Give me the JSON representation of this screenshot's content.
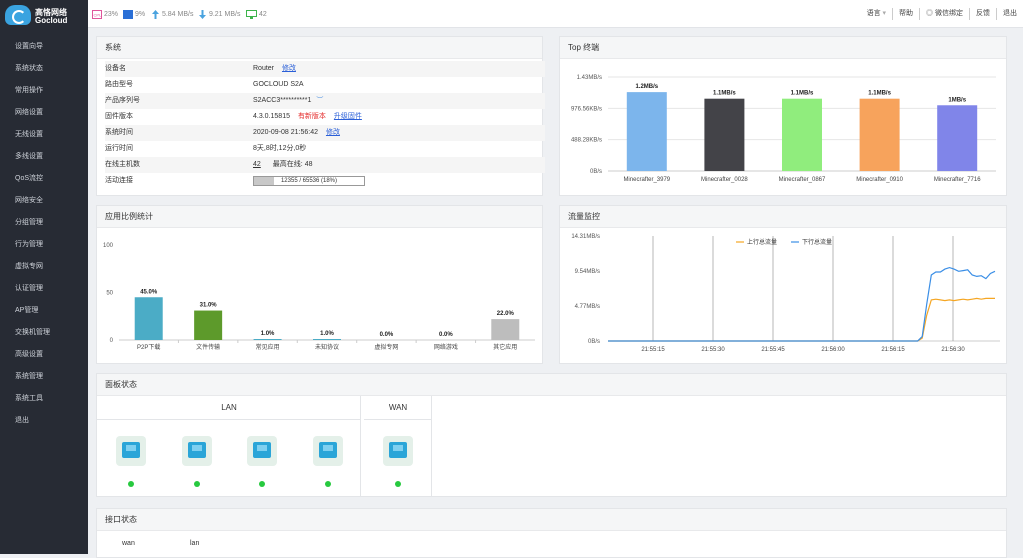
{
  "brand": {
    "cn": "高恪网络",
    "en": "Gocloud"
  },
  "sidebar": {
    "items": [
      "设置向导",
      "系统状态",
      "常用操作",
      "网络设置",
      "无线设置",
      "多线设置",
      "QoS流控",
      "网络安全",
      "分组管理",
      "行为管理",
      "虚拟专网",
      "认证管理",
      "AP管理",
      "交换机管理",
      "高级设置",
      "系统管理",
      "系统工具",
      "退出"
    ]
  },
  "topbar": {
    "cpu": "23%",
    "mem": "9%",
    "up": "5.84 MB/s",
    "down": "9.21 MB/s",
    "hosts": "42",
    "menu": [
      "语言",
      "帮助",
      "微信绑定",
      "反馈",
      "退出"
    ]
  },
  "system": {
    "title": "系统",
    "rows": [
      {
        "k": "设备名",
        "v": "Router",
        "link": "修改"
      },
      {
        "k": "路由型号",
        "v": "GOCLOUD S2A"
      },
      {
        "k": "产品序列号",
        "v": "S2ACC3**********1"
      },
      {
        "k": "固件版本",
        "v": "4.3.0.15815",
        "red": "有新版本",
        "link": "升级固件"
      },
      {
        "k": "系统时间",
        "v": "2020-09-08 21:56:42",
        "link": "修改"
      },
      {
        "k": "运行时间",
        "v": "8天,8时,12分,0秒"
      },
      {
        "k": "在线主机数",
        "v": "42",
        "extra_label": "最高在线:",
        "extra": "48"
      },
      {
        "k": "活动连接",
        "v": "12355 / 65536 (18%)",
        "progress": 0.18
      }
    ]
  },
  "top_terminals": {
    "title": "Top 终端",
    "chart_data": {
      "type": "bar",
      "categories": [
        "Minecrafter_3979",
        "Minecrafter_0028",
        "Minecrafter_0867",
        "Minecrafter_0910",
        "Minecrafter_7716"
      ],
      "values": [
        1.2,
        1.1,
        1.1,
        1.1,
        1.0
      ],
      "value_labels": [
        "1.2MB/s",
        "1.1MB/s",
        "1.1MB/s",
        "1.1MB/s",
        "1MB/s"
      ],
      "colors": [
        "#7cb5ec",
        "#434348",
        "#90ed7d",
        "#f7a35c",
        "#8085e9"
      ],
      "y_ticks": [
        "1.43MB/s",
        "976.56KB/s",
        "488.28KB/s",
        "0B/s"
      ],
      "ylim": [
        0,
        1.43
      ]
    }
  },
  "app_stats": {
    "title": "应用比例统计",
    "chart_data": {
      "type": "bar",
      "categories": [
        "P2P下载",
        "文件传输",
        "常见应用",
        "未知协议",
        "虚拟专网",
        "网络游戏",
        "其它应用"
      ],
      "values": [
        45.0,
        31.0,
        1.0,
        1.0,
        0.0,
        0.0,
        22.0
      ],
      "value_labels": [
        "45.0%",
        "31.0%",
        "1.0%",
        "1.0%",
        "0.0%",
        "0.0%",
        "22.0%"
      ],
      "colors": [
        "#4bacc6",
        "#5d9a2b",
        "#4bacc6",
        "#4bacc6",
        "#4bacc6",
        "#4bacc6",
        "#bdbdbd"
      ],
      "y_ticks": [
        "100",
        "50",
        "0"
      ],
      "ylim": [
        0,
        100
      ]
    }
  },
  "traffic": {
    "title": "流量监控",
    "chart_data": {
      "type": "line",
      "x_ticks": [
        "21:55:15",
        "21:55:30",
        "21:55:45",
        "21:56:00",
        "21:56:15",
        "21:56:30"
      ],
      "y_ticks": [
        "14.31MB/s",
        "9.54MB/s",
        "4.77MB/s",
        "0B/s"
      ],
      "ylim": [
        0,
        14.31
      ],
      "series": [
        {
          "name": "上行总流量",
          "color": "#f5a623",
          "values": [
            0,
            0,
            0,
            0,
            0,
            0,
            0,
            0,
            0,
            0,
            0,
            0,
            0,
            0,
            0,
            0,
            0,
            0,
            0,
            0,
            0,
            0,
            0,
            0,
            0,
            0,
            0,
            0,
            0,
            0,
            0,
            0,
            0,
            0,
            0,
            0,
            0,
            0,
            0,
            0,
            0,
            0,
            0,
            0,
            0,
            0,
            0,
            0,
            0,
            0,
            0,
            0,
            0,
            0,
            0,
            0,
            0,
            0,
            0,
            0,
            0,
            0,
            0,
            0,
            0,
            0,
            0,
            0,
            0,
            0.4,
            3.5,
            5.6,
            5.7,
            5.6,
            5.5,
            5.6,
            5.5,
            5.6,
            5.7,
            5.6,
            5.7,
            5.8,
            5.7,
            5.8,
            5.8,
            5.8
          ]
        },
        {
          "name": "下行总流量",
          "color": "#3a8ee6",
          "values": [
            0,
            0,
            0,
            0,
            0,
            0,
            0,
            0,
            0,
            0,
            0,
            0,
            0,
            0,
            0,
            0,
            0,
            0,
            0,
            0,
            0,
            0,
            0,
            0,
            0,
            0,
            0,
            0,
            0,
            0,
            0,
            0,
            0,
            0,
            0,
            0,
            0,
            0,
            0,
            0,
            0,
            0,
            0,
            0,
            0,
            0,
            0,
            0,
            0,
            0,
            0,
            0,
            0,
            0,
            0,
            0,
            0,
            0,
            0,
            0,
            0,
            0,
            0,
            0,
            0,
            0,
            0,
            0,
            0,
            0.6,
            5.0,
            9.0,
            9.4,
            9.4,
            9.8,
            10.0,
            9.8,
            9.5,
            9.6,
            9.7,
            9.0,
            8.8,
            8.9,
            8.5,
            9.2,
            9.5
          ]
        }
      ]
    }
  },
  "panel_status": {
    "title": "面板状态",
    "lan": "LAN",
    "wan": "WAN"
  },
  "interface_status": {
    "title": "接口状态",
    "cols": [
      "wan",
      "lan"
    ]
  }
}
